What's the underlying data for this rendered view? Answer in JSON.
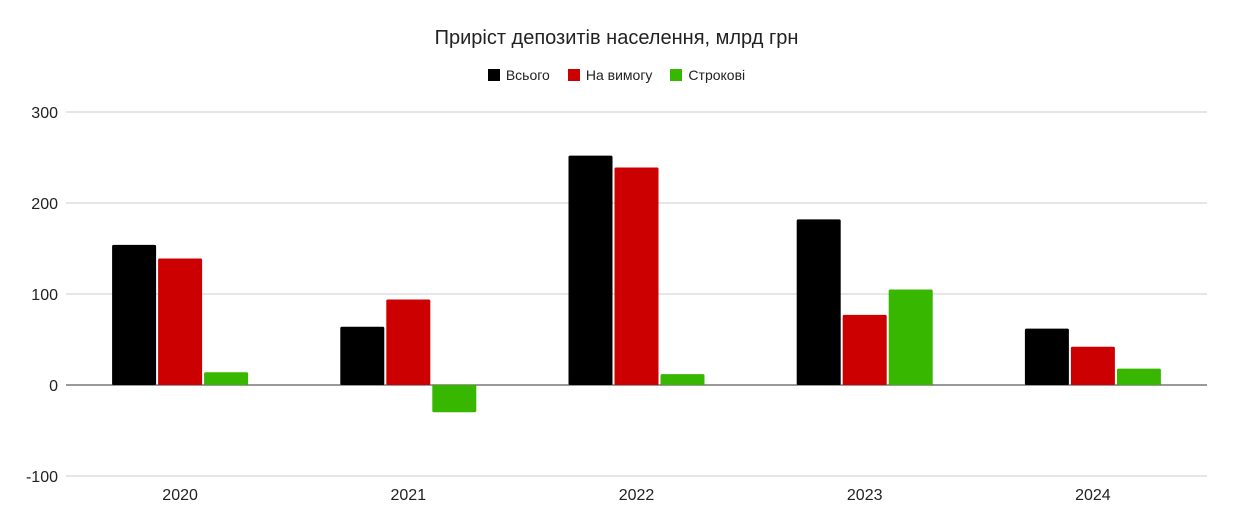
{
  "chart_data": {
    "type": "bar",
    "title": "Приріст депозитів населення, млрд грн",
    "categories": [
      "2020",
      "2021",
      "2022",
      "2023",
      "2024"
    ],
    "series": [
      {
        "name": "Всього",
        "color": "#000000",
        "values": [
          154,
          64,
          252,
          182,
          62
        ]
      },
      {
        "name": "На вимогу",
        "color": "#cc0000",
        "values": [
          139,
          94,
          239,
          77,
          42
        ]
      },
      {
        "name": "Строкові",
        "color": "#38b700",
        "values": [
          14,
          -30,
          12,
          105,
          18
        ]
      }
    ],
    "ylim": [
      -100,
      300
    ],
    "yticks": [
      "300",
      "200",
      "100",
      "0",
      "-100"
    ],
    "ytick_values": [
      300,
      200,
      100,
      0,
      -100
    ],
    "xlabel": "",
    "ylabel": "",
    "grid": true,
    "legend_position": "top-center"
  }
}
